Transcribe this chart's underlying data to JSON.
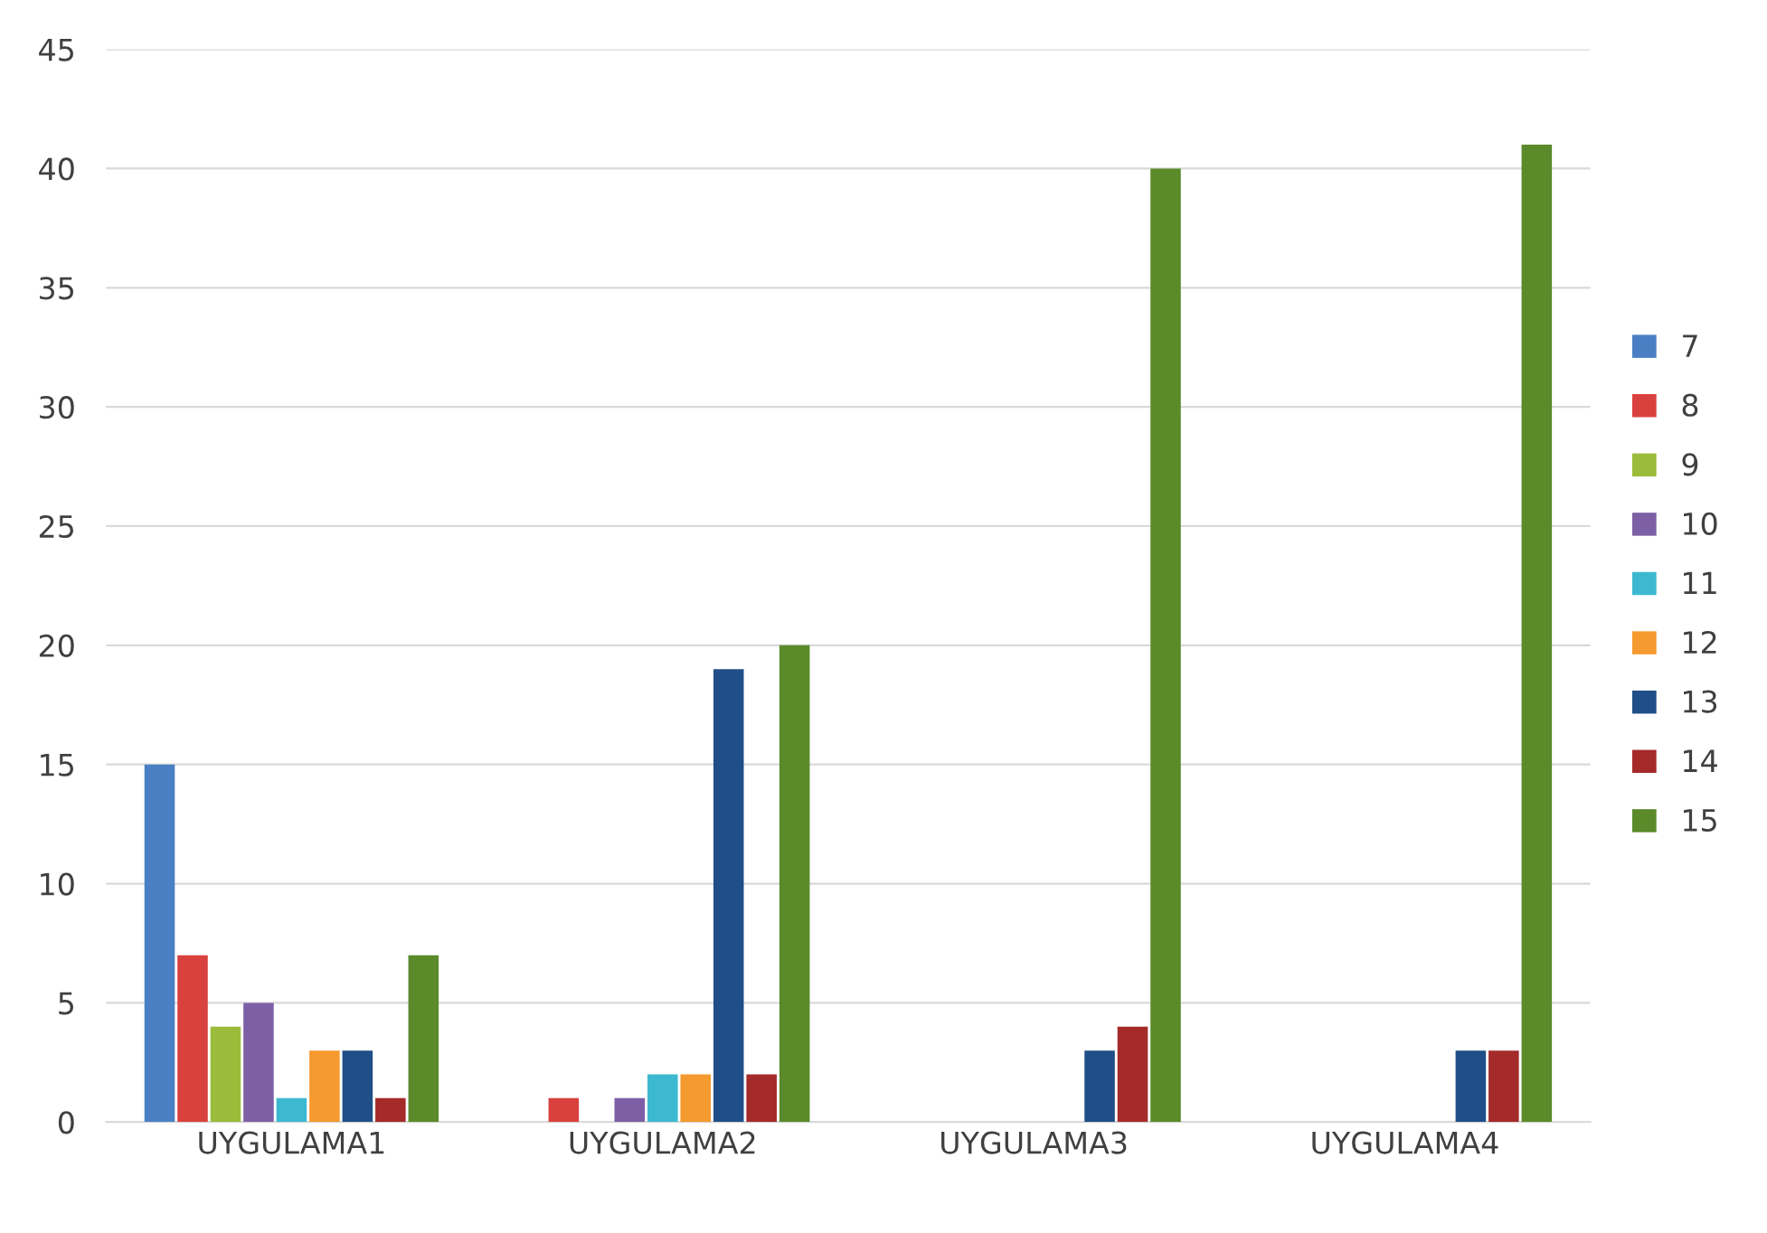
{
  "chart_data": {
    "type": "bar",
    "categories": [
      "UYGULAMA1",
      "UYGULAMA2",
      "UYGULAMA3",
      "UYGULAMA4"
    ],
    "series": [
      {
        "name": "7",
        "color": "#4a7fc4",
        "values": [
          15,
          0,
          0,
          0
        ]
      },
      {
        "name": "8",
        "color": "#d9413e",
        "values": [
          7,
          1,
          0,
          0
        ]
      },
      {
        "name": "9",
        "color": "#9bbb3a",
        "values": [
          4,
          0,
          0,
          0
        ]
      },
      {
        "name": "10",
        "color": "#7d5fa5",
        "values": [
          5,
          1,
          0,
          0
        ]
      },
      {
        "name": "11",
        "color": "#3cb9d0",
        "values": [
          1,
          2,
          0,
          0
        ]
      },
      {
        "name": "12",
        "color": "#f59a2e",
        "values": [
          3,
          2,
          0,
          0
        ]
      },
      {
        "name": "13",
        "color": "#1f4e88",
        "values": [
          3,
          19,
          3,
          3
        ]
      },
      {
        "name": "14",
        "color": "#a52a2a",
        "values": [
          1,
          2,
          4,
          3
        ]
      },
      {
        "name": "15",
        "color": "#5a8a2a",
        "values": [
          7,
          20,
          40,
          41
        ]
      }
    ],
    "ylim": [
      0,
      45
    ],
    "yticks": [
      0,
      5,
      10,
      15,
      20,
      25,
      30,
      35,
      40,
      45
    ],
    "grid": "y",
    "legend": "right"
  }
}
